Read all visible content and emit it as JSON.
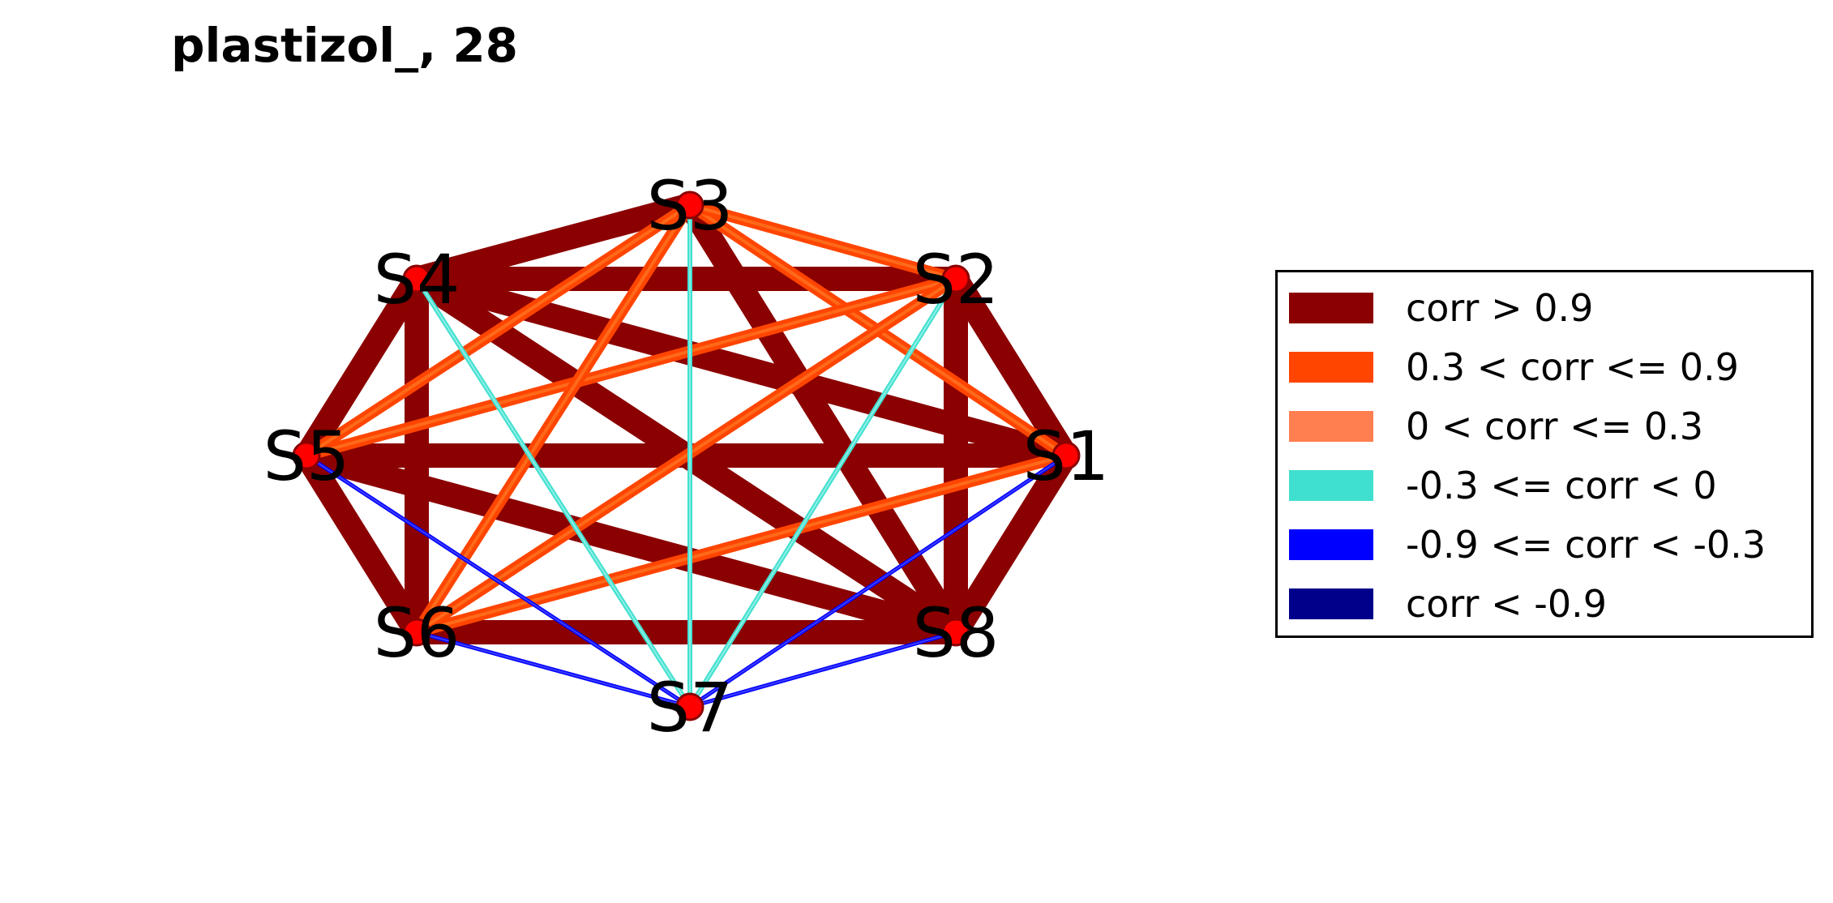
{
  "title": "plastizol_, 28",
  "colors": {
    "very_strong_pos": "#8B0000",
    "strong_pos": "#FF4500",
    "weak_pos": "#FF7F50",
    "weak_neg": "#40E0D0",
    "strong_neg": "#0000FF",
    "very_strong_neg": "#00008B",
    "node_fill": "#FF0000",
    "node_stroke": "#8B0000"
  },
  "legend": [
    {
      "label": "corr > 0.9",
      "color": "#8B0000"
    },
    {
      "label": "0.3 < corr <= 0.9",
      "color": "#FF4500"
    },
    {
      "label": "0 < corr <= 0.3",
      "color": "#FF7F50"
    },
    {
      "label": "-0.3 <= corr < 0",
      "color": "#40E0D0"
    },
    {
      "label": "-0.9 <= corr < -0.3",
      "color": "#0000FF"
    },
    {
      "label": "corr < -0.9",
      "color": "#00008B"
    }
  ],
  "nodes": [
    "S1",
    "S2",
    "S3",
    "S4",
    "S5",
    "S6",
    "S7",
    "S8"
  ],
  "edges": [
    {
      "source": "S1",
      "target": "S2",
      "category": "very_strong_pos"
    },
    {
      "source": "S1",
      "target": "S3",
      "category": "strong_pos"
    },
    {
      "source": "S1",
      "target": "S4",
      "category": "very_strong_pos"
    },
    {
      "source": "S1",
      "target": "S5",
      "category": "very_strong_pos"
    },
    {
      "source": "S1",
      "target": "S6",
      "category": "strong_pos"
    },
    {
      "source": "S1",
      "target": "S7",
      "category": "strong_neg"
    },
    {
      "source": "S1",
      "target": "S8",
      "category": "very_strong_pos"
    },
    {
      "source": "S2",
      "target": "S3",
      "category": "strong_pos"
    },
    {
      "source": "S2",
      "target": "S4",
      "category": "very_strong_pos"
    },
    {
      "source": "S2",
      "target": "S5",
      "category": "strong_pos"
    },
    {
      "source": "S2",
      "target": "S6",
      "category": "strong_pos"
    },
    {
      "source": "S2",
      "target": "S7",
      "category": "weak_neg"
    },
    {
      "source": "S2",
      "target": "S8",
      "category": "very_strong_pos"
    },
    {
      "source": "S3",
      "target": "S4",
      "category": "very_strong_pos"
    },
    {
      "source": "S3",
      "target": "S5",
      "category": "strong_pos"
    },
    {
      "source": "S3",
      "target": "S6",
      "category": "strong_pos"
    },
    {
      "source": "S3",
      "target": "S7",
      "category": "weak_neg"
    },
    {
      "source": "S3",
      "target": "S8",
      "category": "very_strong_pos"
    },
    {
      "source": "S4",
      "target": "S5",
      "category": "very_strong_pos"
    },
    {
      "source": "S4",
      "target": "S6",
      "category": "very_strong_pos"
    },
    {
      "source": "S4",
      "target": "S7",
      "category": "weak_neg"
    },
    {
      "source": "S4",
      "target": "S8",
      "category": "very_strong_pos"
    },
    {
      "source": "S5",
      "target": "S6",
      "category": "very_strong_pos"
    },
    {
      "source": "S5",
      "target": "S7",
      "category": "strong_neg"
    },
    {
      "source": "S5",
      "target": "S8",
      "category": "very_strong_pos"
    },
    {
      "source": "S6",
      "target": "S7",
      "category": "strong_neg"
    },
    {
      "source": "S6",
      "target": "S8",
      "category": "very_strong_pos"
    },
    {
      "source": "S7",
      "target": "S8",
      "category": "strong_neg"
    }
  ]
}
